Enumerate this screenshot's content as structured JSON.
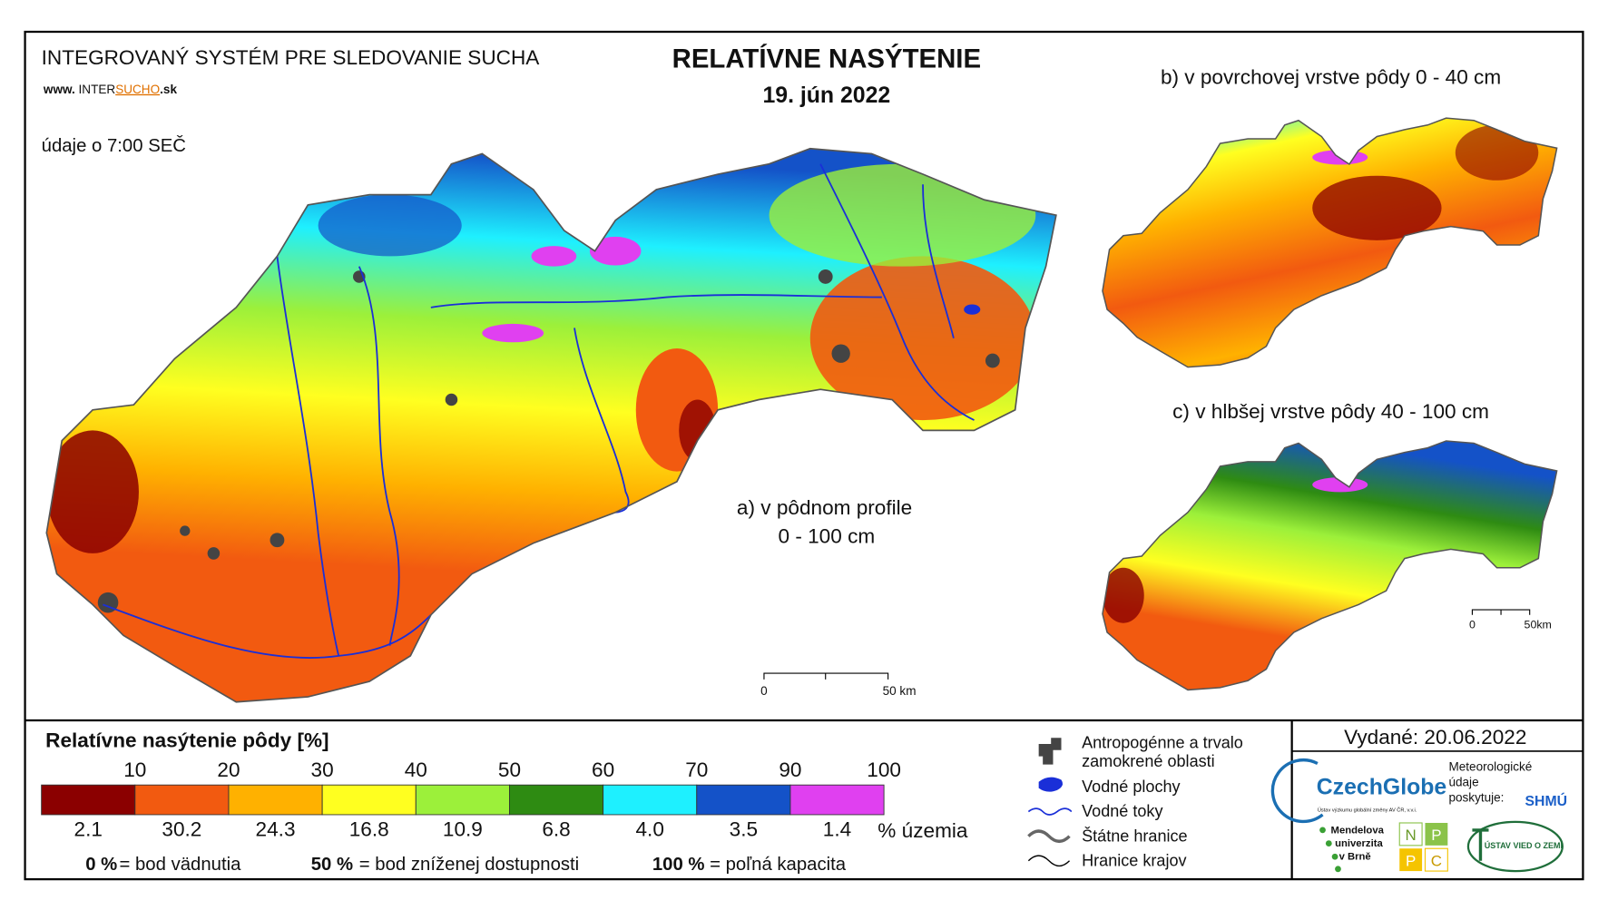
{
  "header": {
    "system": "INTEGROVANÝ SYSTÉM PRE SLEDOVANIE SUCHA",
    "website": [
      "www. ",
      "INTER",
      "SUCHO",
      ".sk"
    ],
    "data_time": "údaje o 7:00 SEČ"
  },
  "title": "RELATÍVNE NASÝTENIE",
  "date": "19. jún 2022",
  "maps": [
    {
      "label": [
        "a) v pôdnom profile",
        "0 - 100 cm"
      ],
      "scale": [
        "0",
        "50 km"
      ]
    },
    {
      "label": [
        "b) v povrchovej vrstve pôdy 0 - 40 cm"
      ]
    },
    {
      "label": [
        "c) v hlbšej vrstve pôdy 40 - 100 cm"
      ],
      "scale": [
        "0",
        "50km"
      ]
    }
  ],
  "legend": {
    "title": "Relatívne nasýtenie pôdy [%]",
    "thresholds": [
      10,
      20,
      30,
      40,
      50,
      60,
      70,
      90,
      100
    ],
    "classes": [
      {
        "color": "#8b0000",
        "share": "2.1"
      },
      {
        "color": "#f25a10",
        "share": "30.2"
      },
      {
        "color": "#ffb100",
        "share": "24.3"
      },
      {
        "color": "#ffff20",
        "share": "16.8"
      },
      {
        "color": "#9cf03a",
        "share": "10.9"
      },
      {
        "color": "#2e8b12",
        "share": "6.8"
      },
      {
        "color": "#1ef0ff",
        "share": "4.0"
      },
      {
        "color": "#1452c8",
        "share": "3.5"
      },
      {
        "color": "#e040f0",
        "share": "1.4"
      }
    ],
    "unit": "% územia",
    "notes": [
      {
        "value": "0 %",
        "text": "= bod vädnutia"
      },
      {
        "value": "50 %",
        "text": "= bod zníženej dostupnosti"
      },
      {
        "value": "100 %",
        "text": "= poľná kapacita"
      }
    ]
  },
  "symbols": [
    [
      "Antropogénne a trvalo",
      "zamokrené oblasti"
    ],
    [
      "Vodné plochy"
    ],
    [
      "Vodné toky"
    ],
    [
      "Štátne hranice"
    ],
    [
      "Hranice krajov"
    ]
  ],
  "issued": "Vydané: 20.06.2022",
  "logos": {
    "czechglobe": "CzechGlobe",
    "czechglobe_sub": "Ústav výzkumu globální změny AV ČR, v.v.i.",
    "meteo": [
      "Meteorologické",
      "údaje",
      "poskytuje:"
    ],
    "shmu": "SHMÚ",
    "mendel": [
      "Mendelova",
      "univerzita",
      "v Brně"
    ],
    "nppc": [
      "N",
      "P",
      "P",
      "C"
    ],
    "uvz": "ÚSTAV VIED O ZEMI"
  }
}
